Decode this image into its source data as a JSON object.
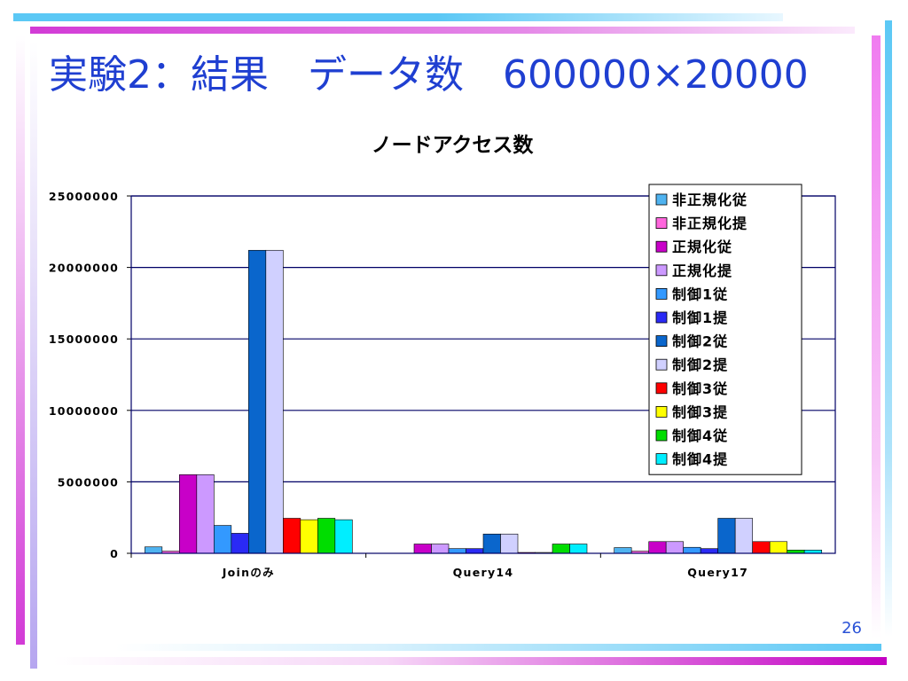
{
  "slide": {
    "title": "実験2：結果　データ数　600000×20000",
    "page_number": "26"
  },
  "colors": {
    "accent_blue": "#1f3fd1",
    "deco_cyan": "#5bc8f5",
    "deco_magenta": "#d23bd6"
  },
  "chart_data": {
    "type": "bar",
    "title": "ノードアクセス数",
    "xlabel": "",
    "ylabel": "",
    "ylim": [
      0,
      25000000
    ],
    "yticks": [
      0,
      5000000,
      10000000,
      15000000,
      20000000,
      25000000
    ],
    "grid": true,
    "legend_position": "top-right",
    "categories": [
      "Joinのみ",
      "Query14",
      "Query17"
    ],
    "series": [
      {
        "name": "非正規化従",
        "color": "#4fb3f0",
        "values": [
          450000,
          0,
          400000
        ]
      },
      {
        "name": "非正規化提",
        "color": "#ff66dd",
        "values": [
          150000,
          0,
          150000
        ]
      },
      {
        "name": "正規化従",
        "color": "#c800c8",
        "values": [
          5500000,
          650000,
          820000
        ]
      },
      {
        "name": "正規化提",
        "color": "#cc99ff",
        "values": [
          5500000,
          650000,
          820000
        ]
      },
      {
        "name": "制御1従",
        "color": "#3399ff",
        "values": [
          1950000,
          330000,
          420000
        ]
      },
      {
        "name": "制御1提",
        "color": "#2a2af5",
        "values": [
          1400000,
          330000,
          330000
        ]
      },
      {
        "name": "制御2従",
        "color": "#0a66cc",
        "values": [
          21200000,
          1350000,
          2450000
        ]
      },
      {
        "name": "制御2提",
        "color": "#d0d0ff",
        "values": [
          21200000,
          1350000,
          2450000
        ]
      },
      {
        "name": "制御3従",
        "color": "#ff0000",
        "values": [
          2450000,
          60000,
          820000
        ]
      },
      {
        "name": "制御3提",
        "color": "#ffff00",
        "values": [
          2350000,
          60000,
          820000
        ]
      },
      {
        "name": "制御4従",
        "color": "#00dd00",
        "values": [
          2450000,
          650000,
          230000
        ]
      },
      {
        "name": "制御4提",
        "color": "#00eeff",
        "values": [
          2350000,
          650000,
          230000
        ]
      }
    ]
  }
}
